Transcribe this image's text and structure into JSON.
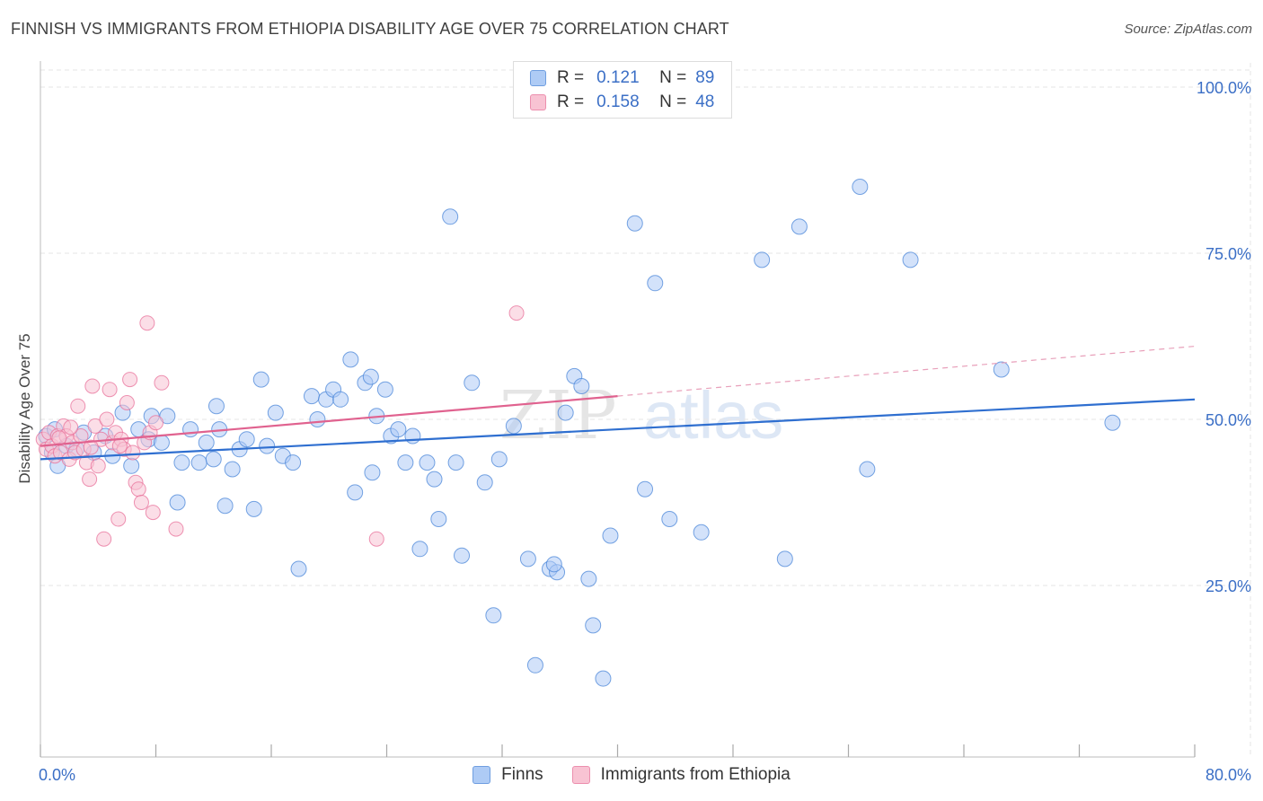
{
  "title": "FINNISH VS IMMIGRANTS FROM ETHIOPIA DISABILITY AGE OVER 75 CORRELATION CHART",
  "source": "Source: ZipAtlas.com",
  "colors": {
    "finns": "#4a86d8",
    "finns_fill": "#aecbf5",
    "ethiopia": "#e8709a",
    "ethiopia_fill": "#f8c3d3",
    "axis_label": "#3b6fc6",
    "grid": "#e6e6e6"
  },
  "legend_top": {
    "rows": [
      {
        "r_label": "R =",
        "r_value": "0.121",
        "n_label": "N =",
        "n_value": "89"
      },
      {
        "r_label": "R =",
        "r_value": "0.158",
        "n_label": "N =",
        "n_value": "48"
      }
    ]
  },
  "legend_bottom": {
    "items": [
      {
        "label": "Finns"
      },
      {
        "label": "Immigrants from Ethiopia"
      }
    ]
  },
  "watermark": {
    "zip": "ZIP",
    "atlas": "atlas"
  },
  "chart_data": {
    "type": "scatter",
    "title": "FINNISH VS IMMIGRANTS FROM ETHIOPIA DISABILITY AGE OVER 75 CORRELATION CHART",
    "xlabel": "",
    "ylabel": "Disability Age Over 75",
    "xlim": [
      0,
      80
    ],
    "ylim": [
      0,
      105
    ],
    "x_ticks": [
      0,
      8,
      16,
      24,
      32,
      40,
      48,
      56,
      64,
      72,
      80
    ],
    "x_tick_labels": [
      "0.0%",
      "80.0%"
    ],
    "y_ticks": [
      25,
      50,
      75,
      100
    ],
    "y_tick_labels": [
      "25.0%",
      "50.0%",
      "75.0%",
      "100.0%"
    ],
    "grid": true,
    "legend_position": "top-center",
    "series": [
      {
        "name": "Finns",
        "r": 0.121,
        "n": 89,
        "trend": {
          "x": [
            0,
            80
          ],
          "y": [
            44.0,
            53.0
          ]
        },
        "points": [
          [
            0.4,
            47.5
          ],
          [
            0.8,
            45.0
          ],
          [
            1.2,
            43.0
          ],
          [
            1.8,
            46.0
          ],
          [
            2.5,
            45.5
          ],
          [
            3.0,
            48.0
          ],
          [
            3.7,
            45.0
          ],
          [
            4.5,
            47.5
          ],
          [
            5.0,
            44.5
          ],
          [
            5.7,
            51.0
          ],
          [
            6.3,
            43.0
          ],
          [
            6.8,
            48.5
          ],
          [
            7.5,
            47.0
          ],
          [
            7.7,
            50.5
          ],
          [
            8.4,
            46.5
          ],
          [
            8.8,
            50.5
          ],
          [
            9.5,
            37.5
          ],
          [
            9.8,
            43.5
          ],
          [
            10.4,
            48.5
          ],
          [
            11.0,
            43.5
          ],
          [
            11.5,
            46.5
          ],
          [
            12.0,
            44.0
          ],
          [
            12.4,
            48.5
          ],
          [
            12.8,
            37.0
          ],
          [
            13.3,
            42.5
          ],
          [
            13.8,
            45.5
          ],
          [
            14.3,
            47.0
          ],
          [
            14.8,
            36.5
          ],
          [
            15.3,
            56.0
          ],
          [
            15.7,
            46.0
          ],
          [
            16.3,
            51.0
          ],
          [
            16.8,
            44.5
          ],
          [
            17.5,
            43.5
          ],
          [
            17.9,
            27.5
          ],
          [
            18.8,
            53.5
          ],
          [
            19.2,
            50.0
          ],
          [
            19.8,
            53.0
          ],
          [
            20.3,
            54.5
          ],
          [
            20.8,
            53.0
          ],
          [
            21.5,
            59.0
          ],
          [
            21.8,
            39.0
          ],
          [
            22.5,
            55.5
          ],
          [
            23.0,
            42.0
          ],
          [
            23.3,
            50.5
          ],
          [
            23.9,
            54.5
          ],
          [
            24.3,
            47.5
          ],
          [
            24.8,
            48.5
          ],
          [
            25.3,
            43.5
          ],
          [
            25.8,
            47.5
          ],
          [
            26.3,
            30.5
          ],
          [
            26.8,
            43.5
          ],
          [
            27.3,
            41.0
          ],
          [
            27.6,
            35.0
          ],
          [
            28.4,
            80.5
          ],
          [
            28.8,
            43.5
          ],
          [
            29.2,
            29.5
          ],
          [
            29.9,
            55.5
          ],
          [
            30.8,
            40.5
          ],
          [
            31.4,
            20.5
          ],
          [
            31.8,
            44.0
          ],
          [
            32.8,
            49.0
          ],
          [
            33.8,
            29.0
          ],
          [
            34.3,
            13.0
          ],
          [
            35.3,
            27.5
          ],
          [
            35.8,
            27.0
          ],
          [
            36.4,
            51.0
          ],
          [
            37.0,
            56.5
          ],
          [
            37.5,
            55.0
          ],
          [
            38.0,
            26.0
          ],
          [
            38.3,
            19.0
          ],
          [
            39.0,
            11.0
          ],
          [
            39.5,
            32.5
          ],
          [
            41.2,
            79.5
          ],
          [
            41.9,
            39.5
          ],
          [
            42.6,
            70.5
          ],
          [
            43.6,
            35.0
          ],
          [
            45.8,
            33.0
          ],
          [
            50.0,
            74.0
          ],
          [
            51.6,
            29.0
          ],
          [
            52.6,
            79.0
          ],
          [
            56.8,
            85.0
          ],
          [
            57.3,
            42.5
          ],
          [
            60.3,
            74.0
          ],
          [
            66.6,
            57.5
          ],
          [
            74.3,
            49.5
          ],
          [
            12.2,
            52.0
          ],
          [
            22.9,
            56.4
          ],
          [
            1.0,
            48.5
          ],
          [
            35.6,
            28.2
          ]
        ]
      },
      {
        "name": "Immigrants from Ethiopia",
        "r": 0.158,
        "n": 48,
        "trend": {
          "x": [
            0,
            40
          ],
          "y": [
            46.0,
            53.5
          ]
        },
        "trend_dashed_to": {
          "x": 80,
          "y": 61.0
        },
        "points": [
          [
            0.2,
            47.0
          ],
          [
            0.4,
            45.5
          ],
          [
            0.6,
            48.0
          ],
          [
            0.8,
            46.0
          ],
          [
            1.0,
            44.5
          ],
          [
            1.2,
            47.5
          ],
          [
            1.4,
            45.0
          ],
          [
            1.6,
            49.0
          ],
          [
            1.8,
            47.5
          ],
          [
            2.0,
            44.0
          ],
          [
            2.2,
            46.5
          ],
          [
            2.4,
            45.0
          ],
          [
            2.6,
            52.0
          ],
          [
            2.8,
            47.5
          ],
          [
            3.0,
            45.5
          ],
          [
            3.2,
            43.5
          ],
          [
            3.4,
            41.0
          ],
          [
            3.6,
            55.0
          ],
          [
            3.8,
            49.0
          ],
          [
            4.0,
            43.0
          ],
          [
            4.2,
            47.0
          ],
          [
            4.4,
            32.0
          ],
          [
            4.6,
            50.0
          ],
          [
            4.8,
            54.5
          ],
          [
            5.0,
            46.5
          ],
          [
            5.2,
            48.0
          ],
          [
            5.4,
            35.0
          ],
          [
            5.6,
            47.0
          ],
          [
            5.8,
            45.5
          ],
          [
            6.0,
            52.5
          ],
          [
            6.2,
            56.0
          ],
          [
            6.4,
            45.0
          ],
          [
            6.6,
            40.5
          ],
          [
            6.8,
            39.5
          ],
          [
            7.0,
            37.5
          ],
          [
            7.2,
            46.5
          ],
          [
            7.4,
            64.5
          ],
          [
            7.6,
            48.0
          ],
          [
            7.8,
            36.0
          ],
          [
            8.0,
            49.5
          ],
          [
            8.4,
            55.5
          ],
          [
            9.4,
            33.5
          ],
          [
            23.3,
            32.0
          ],
          [
            33.0,
            66.0
          ],
          [
            1.3,
            47.2
          ],
          [
            2.1,
            48.8
          ],
          [
            3.5,
            45.8
          ],
          [
            5.5,
            46.0
          ]
        ]
      }
    ]
  }
}
